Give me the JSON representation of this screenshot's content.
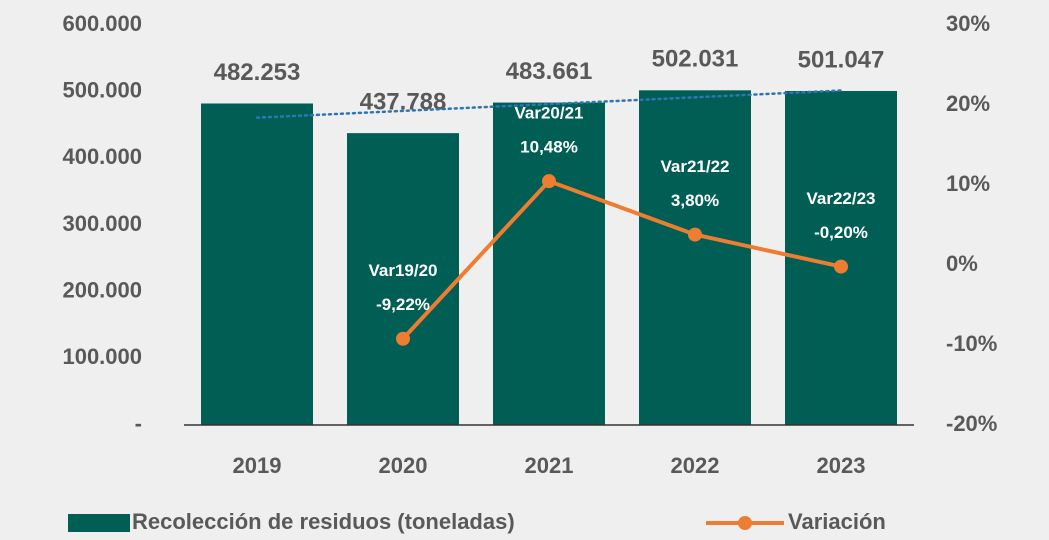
{
  "chart_data": {
    "type": "bar",
    "categories": [
      "2019",
      "2020",
      "2021",
      "2022",
      "2023"
    ],
    "series": [
      {
        "name": "Recolección de residuos (toneladas)",
        "type": "bar",
        "color": "#005e55",
        "values": [
          482253,
          437788,
          483661,
          502031,
          501047
        ],
        "value_labels": [
          "482.253",
          "437.788",
          "483.661",
          "502.031",
          "501.047"
        ]
      },
      {
        "name": "Variación",
        "type": "line",
        "axis": "y2",
        "color": "#ed7d31",
        "values": [
          null,
          -9.22,
          10.48,
          3.8,
          -0.2
        ],
        "value_labels": [
          null,
          "-9,22%",
          "10,48%",
          "3,80%",
          "-0,20%"
        ],
        "point_labels": [
          null,
          "Var19/20",
          "Var20/21",
          "Var21/22",
          "Var22/23"
        ]
      }
    ],
    "ylim": [
      0,
      600000
    ],
    "yticks": [
      {
        "value": 0,
        "label": "-"
      },
      {
        "value": 100000,
        "label": "100.000"
      },
      {
        "value": 200000,
        "label": "200.000"
      },
      {
        "value": 300000,
        "label": "300.000"
      },
      {
        "value": 400000,
        "label": "400.000"
      },
      {
        "value": 500000,
        "label": "500.000"
      },
      {
        "value": 600000,
        "label": "600.000"
      }
    ],
    "y2lim": [
      -20,
      30
    ],
    "y2ticks": [
      {
        "value": -20,
        "label": "-20%"
      },
      {
        "value": -10,
        "label": "-10%"
      },
      {
        "value": 0,
        "label": "0%"
      },
      {
        "value": 10,
        "label": "10%"
      },
      {
        "value": 20,
        "label": "20%"
      },
      {
        "value": 30,
        "label": "30%"
      }
    ],
    "trendline": true,
    "trendline_color": "#2e75b6",
    "grid": false,
    "legend": "bottom"
  }
}
